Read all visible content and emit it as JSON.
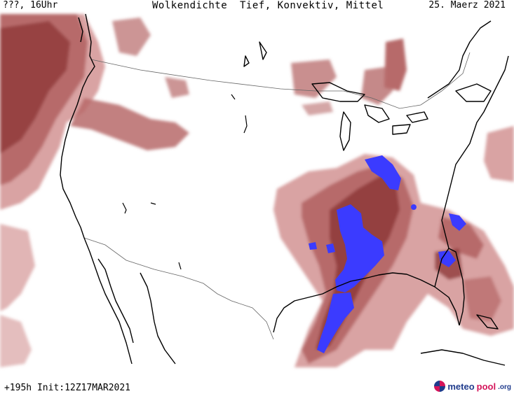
{
  "header": {
    "left": "???, 16Uhr",
    "title": "Wolkendichte  Tief, Konvektiv, Mittel",
    "date": "25. Maerz 2021"
  },
  "footer": {
    "init": "+195h Init:12Z17MAR2021"
  },
  "logo": {
    "part_a": "meteo",
    "part_b": "pool",
    "part_c": ".org"
  },
  "colors": {
    "background": "#ffffff",
    "cloud_dark": "#8e3a3a",
    "cloud_mid": "#b76a6a",
    "cloud_light": "#d9a3a3",
    "convective": "#3b3bff",
    "coastline": "#000000",
    "borders": "#666666"
  }
}
